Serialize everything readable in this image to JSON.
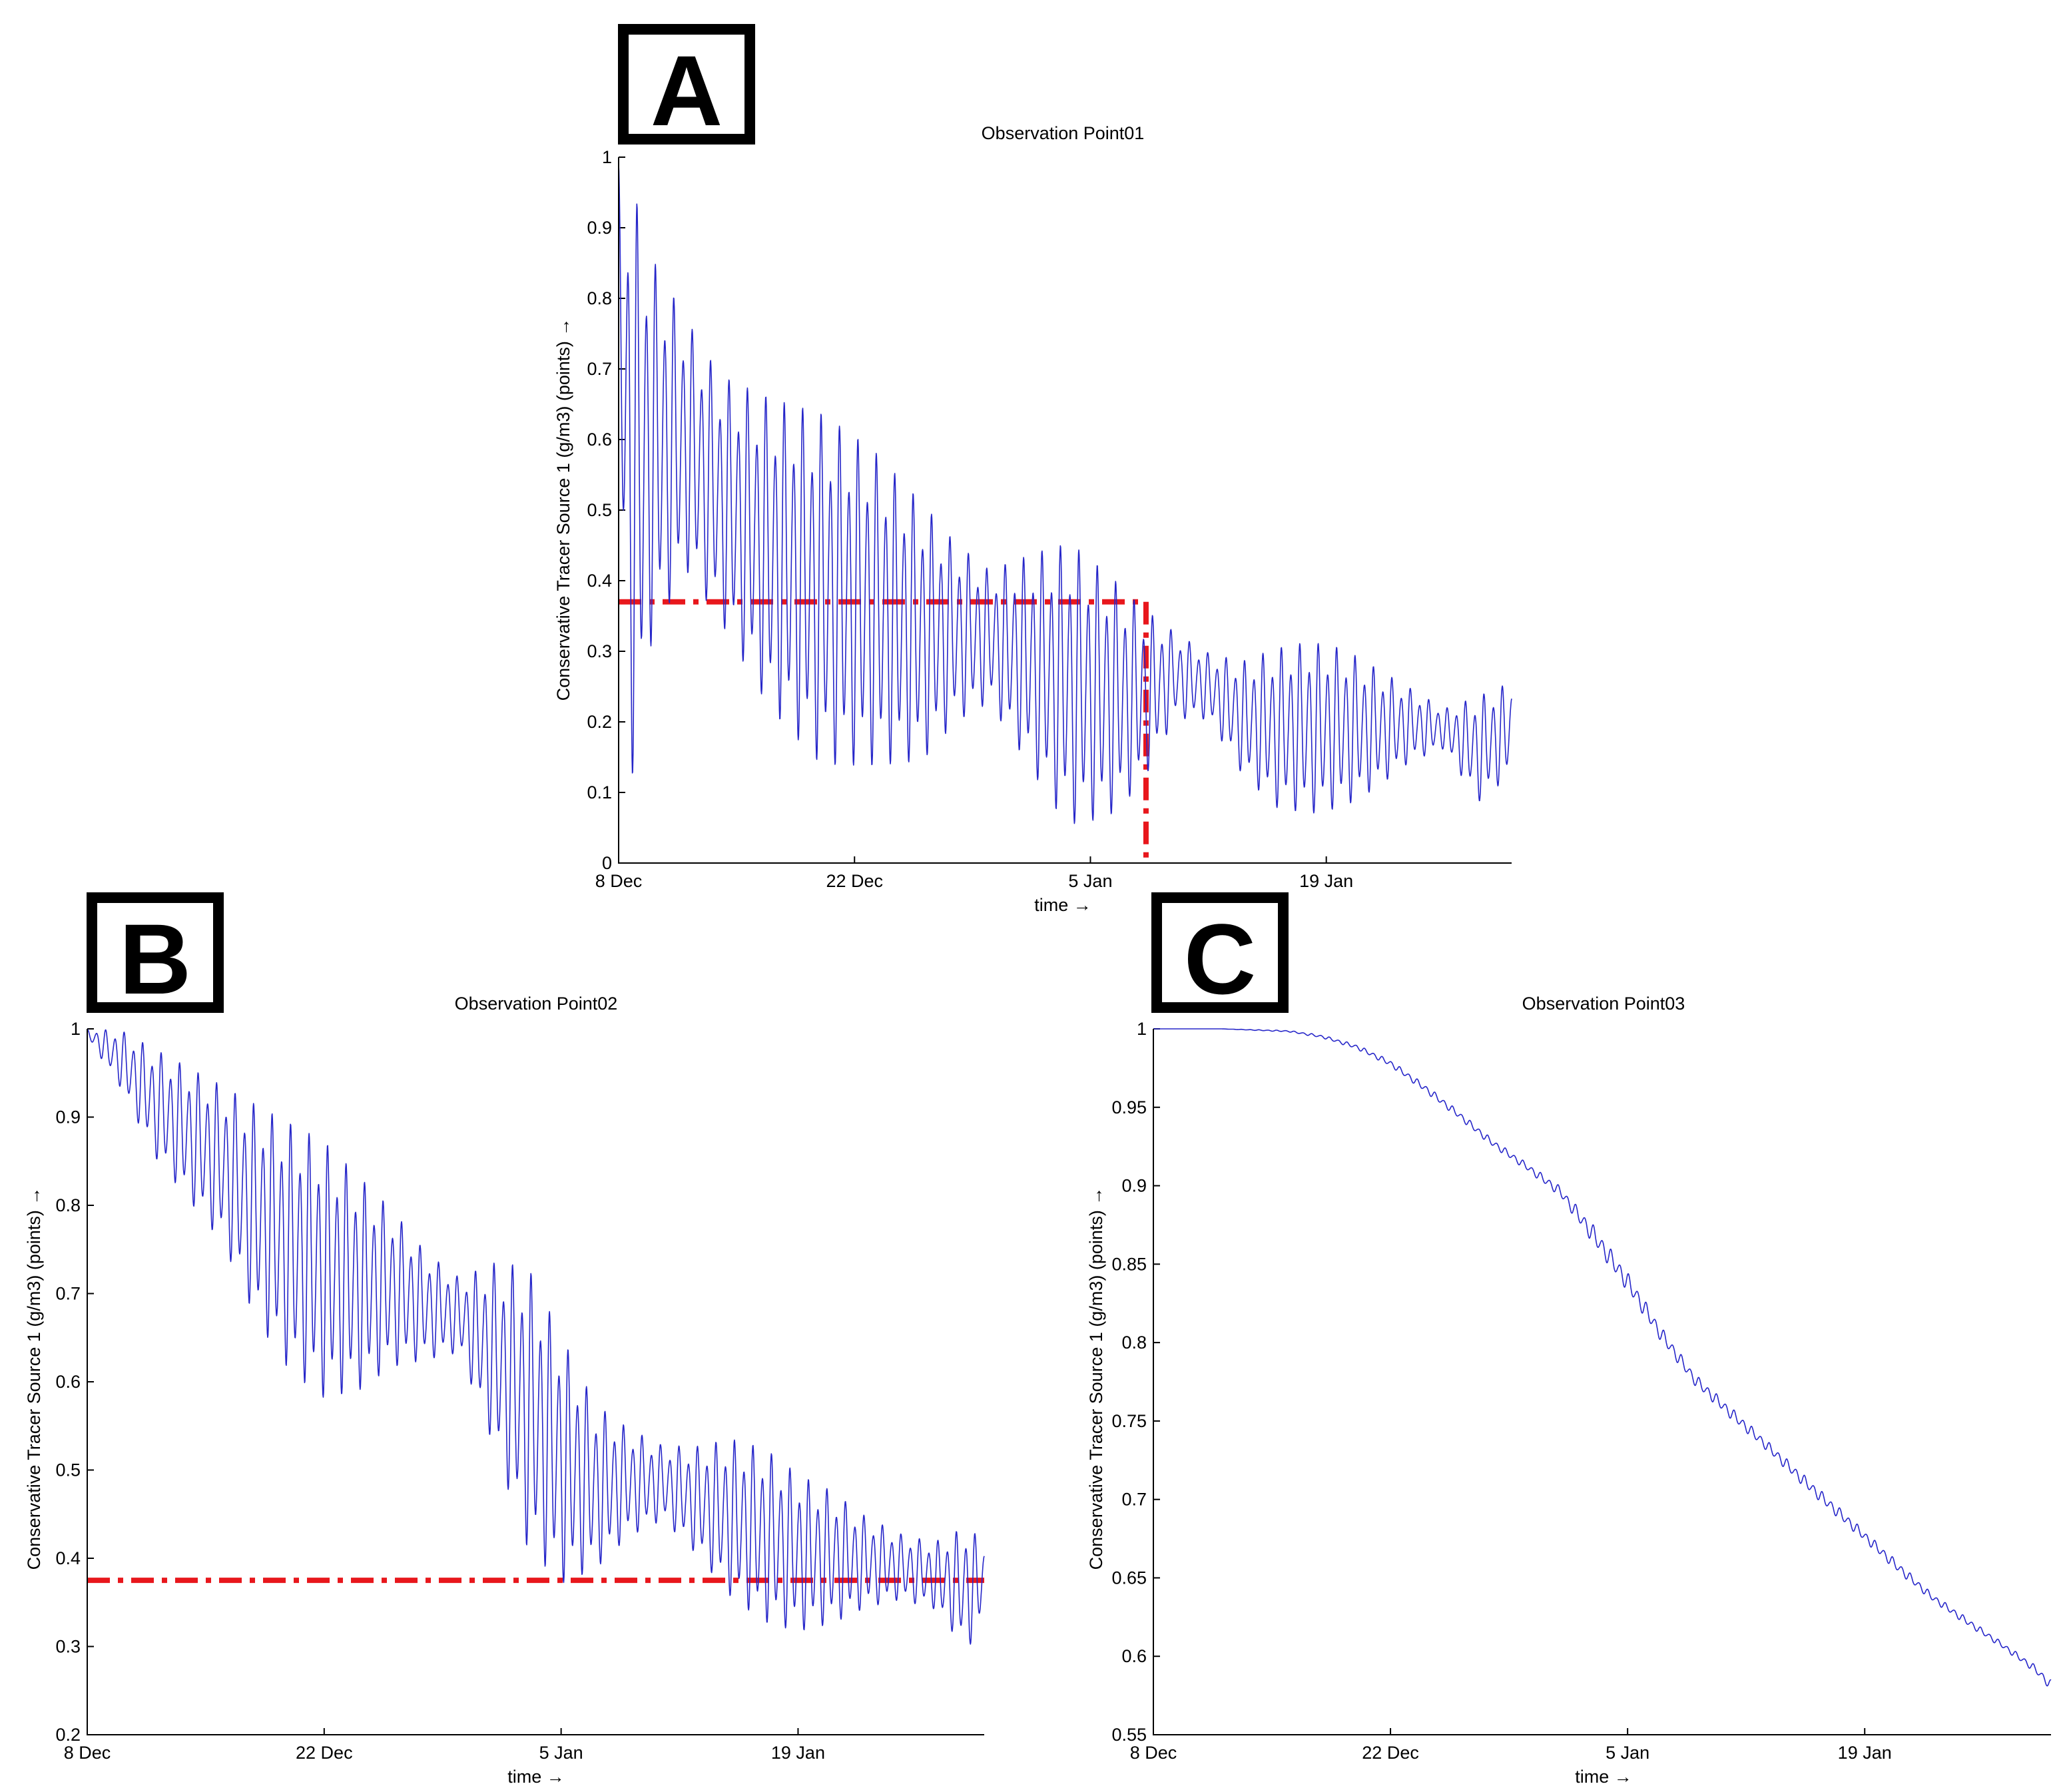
{
  "colors": {
    "series": "#2626c9",
    "reference": "#e8171c",
    "badge_border": "#000000"
  },
  "chart_data": [
    {
      "panel": "A",
      "type": "line",
      "title": "Observation Point01",
      "xlabel": "time →",
      "ylabel": "Conservative Tracer Source 1 (g/m3) (points) →",
      "xlim": [
        0,
        53
      ],
      "ylim": [
        0,
        1
      ],
      "x_unit": "days since 8 Dec",
      "x_ticks": [
        {
          "value": 0,
          "label": "8 Dec"
        },
        {
          "value": 14,
          "label": "22 Dec"
        },
        {
          "value": 28,
          "label": "5 Jan"
        },
        {
          "value": 42,
          "label": "19 Jan"
        }
      ],
      "y_ticks": [
        {
          "value": 0,
          "label": "0"
        },
        {
          "value": 0.1,
          "label": "0.1"
        },
        {
          "value": 0.2,
          "label": "0.2"
        },
        {
          "value": 0.3,
          "label": "0.3"
        },
        {
          "value": 0.4,
          "label": "0.4"
        },
        {
          "value": 0.5,
          "label": "0.5"
        },
        {
          "value": 0.6,
          "label": "0.6"
        },
        {
          "value": 0.7,
          "label": "0.7"
        },
        {
          "value": 0.8,
          "label": "0.8"
        },
        {
          "value": 0.9,
          "label": "0.9"
        },
        {
          "value": 1,
          "label": "1"
        }
      ],
      "series": [
        {
          "name": "Conservative Tracer Source 1",
          "description": "tidal oscillation envelope (sampled from figure)",
          "x": [
            0,
            0.7,
            2,
            4,
            6,
            9,
            12,
            15,
            18,
            20,
            22,
            24,
            26,
            27,
            29,
            31,
            33,
            35,
            37,
            39,
            41,
            43,
            45,
            47,
            49,
            51,
            53
          ],
          "upper": [
            1.0,
            0.99,
            0.87,
            0.78,
            0.7,
            0.67,
            0.65,
            0.6,
            0.52,
            0.46,
            0.42,
            0.44,
            0.46,
            0.46,
            0.42,
            0.37,
            0.33,
            0.3,
            0.29,
            0.31,
            0.32,
            0.31,
            0.28,
            0.25,
            0.22,
            0.24,
            0.26
          ],
          "lower": [
            0.6,
            0.07,
            0.3,
            0.4,
            0.33,
            0.2,
            0.12,
            0.12,
            0.13,
            0.19,
            0.22,
            0.14,
            0.06,
            0.04,
            0.05,
            0.1,
            0.2,
            0.2,
            0.12,
            0.07,
            0.06,
            0.07,
            0.1,
            0.14,
            0.16,
            0.08,
            0.12
          ]
        }
      ],
      "reference_lines": [
        {
          "orientation": "horizontal",
          "y": 0.37,
          "x_from": 0,
          "x_to": 31.3,
          "style": "dash-dot"
        },
        {
          "orientation": "vertical",
          "x": 31.3,
          "y_from": 0,
          "y_to": 0.37,
          "style": "dash-dot"
        }
      ]
    },
    {
      "panel": "B",
      "type": "line",
      "title": "Observation Point02",
      "xlabel": "time →",
      "ylabel": "Conservative Tracer Source 1 (g/m3) (points) →",
      "xlim": [
        0,
        53
      ],
      "ylim": [
        0.2,
        1
      ],
      "x_unit": "days since 8 Dec",
      "x_ticks": [
        {
          "value": 0,
          "label": "8 Dec"
        },
        {
          "value": 14,
          "label": "22 Dec"
        },
        {
          "value": 28,
          "label": "5 Jan"
        },
        {
          "value": 42,
          "label": "19 Jan"
        }
      ],
      "y_ticks": [
        {
          "value": 0.2,
          "label": "0.2"
        },
        {
          "value": 0.3,
          "label": "0.3"
        },
        {
          "value": 0.4,
          "label": "0.4"
        },
        {
          "value": 0.5,
          "label": "0.5"
        },
        {
          "value": 0.6,
          "label": "0.6"
        },
        {
          "value": 0.7,
          "label": "0.7"
        },
        {
          "value": 0.8,
          "label": "0.8"
        },
        {
          "value": 0.9,
          "label": "0.9"
        },
        {
          "value": 1,
          "label": "1"
        }
      ],
      "series": [
        {
          "name": "Conservative Tracer Source 1",
          "description": "tidal oscillation envelope (sampled from figure)",
          "x": [
            0,
            2,
            4,
            6,
            8,
            10,
            12,
            14,
            16,
            18,
            20,
            22,
            24,
            26,
            28,
            30,
            32,
            34,
            36,
            38,
            40,
            42,
            44,
            46,
            48,
            50,
            52,
            53
          ],
          "upper": [
            1.0,
            1.0,
            0.98,
            0.96,
            0.94,
            0.92,
            0.9,
            0.88,
            0.84,
            0.8,
            0.75,
            0.72,
            0.74,
            0.74,
            0.66,
            0.58,
            0.55,
            0.53,
            0.53,
            0.54,
            0.53,
            0.5,
            0.48,
            0.45,
            0.43,
            0.42,
            0.44,
            0.42
          ],
          "lower": [
            0.99,
            0.93,
            0.85,
            0.8,
            0.75,
            0.66,
            0.6,
            0.57,
            0.58,
            0.61,
            0.62,
            0.63,
            0.52,
            0.4,
            0.36,
            0.38,
            0.42,
            0.44,
            0.4,
            0.35,
            0.32,
            0.31,
            0.32,
            0.34,
            0.35,
            0.34,
            0.29,
            0.33
          ]
        }
      ],
      "reference_lines": [
        {
          "orientation": "horizontal",
          "y": 0.375,
          "x_from": 0,
          "x_to": 53,
          "style": "dash-dot"
        }
      ]
    },
    {
      "panel": "C",
      "type": "line",
      "title": "Observation Point03",
      "xlabel": "time →",
      "ylabel": "Conservative Tracer Source 1 (g/m3) (points) →",
      "xlim": [
        0,
        53
      ],
      "ylim": [
        0.55,
        1
      ],
      "x_unit": "days since 8 Dec",
      "x_ticks": [
        {
          "value": 0,
          "label": "8 Dec"
        },
        {
          "value": 14,
          "label": "22 Dec"
        },
        {
          "value": 28,
          "label": "5 Jan"
        },
        {
          "value": 42,
          "label": "19 Jan"
        }
      ],
      "y_ticks": [
        {
          "value": 0.55,
          "label": "0.55"
        },
        {
          "value": 0.6,
          "label": "0.6"
        },
        {
          "value": 0.65,
          "label": "0.65"
        },
        {
          "value": 0.7,
          "label": "0.7"
        },
        {
          "value": 0.75,
          "label": "0.75"
        },
        {
          "value": 0.8,
          "label": "0.8"
        },
        {
          "value": 0.85,
          "label": "0.85"
        },
        {
          "value": 0.9,
          "label": "0.9"
        },
        {
          "value": 0.95,
          "label": "0.95"
        },
        {
          "value": 1,
          "label": "1"
        }
      ],
      "series": [
        {
          "name": "Conservative Tracer Source 1",
          "description": "slow decline with small tidal ripple (sampled from figure)",
          "x": [
            0,
            4,
            8,
            10,
            12,
            14,
            16,
            18,
            20,
            22,
            24,
            26,
            28,
            30,
            32,
            34,
            36,
            38,
            40,
            42,
            44,
            46,
            48,
            50,
            52,
            53
          ],
          "upper": [
            1.0,
            1.0,
            0.999,
            0.996,
            0.99,
            0.98,
            0.965,
            0.948,
            0.93,
            0.915,
            0.9,
            0.875,
            0.845,
            0.81,
            0.78,
            0.76,
            0.74,
            0.72,
            0.7,
            0.68,
            0.66,
            0.64,
            0.625,
            0.61,
            0.595,
            0.585
          ],
          "lower": [
            1.0,
            1.0,
            0.998,
            0.994,
            0.987,
            0.976,
            0.96,
            0.943,
            0.925,
            0.91,
            0.893,
            0.862,
            0.832,
            0.8,
            0.772,
            0.752,
            0.733,
            0.712,
            0.692,
            0.673,
            0.653,
            0.635,
            0.62,
            0.606,
            0.59,
            0.578
          ]
        }
      ],
      "reference_lines": []
    }
  ],
  "panel_labels": [
    "A",
    "B",
    "C"
  ]
}
